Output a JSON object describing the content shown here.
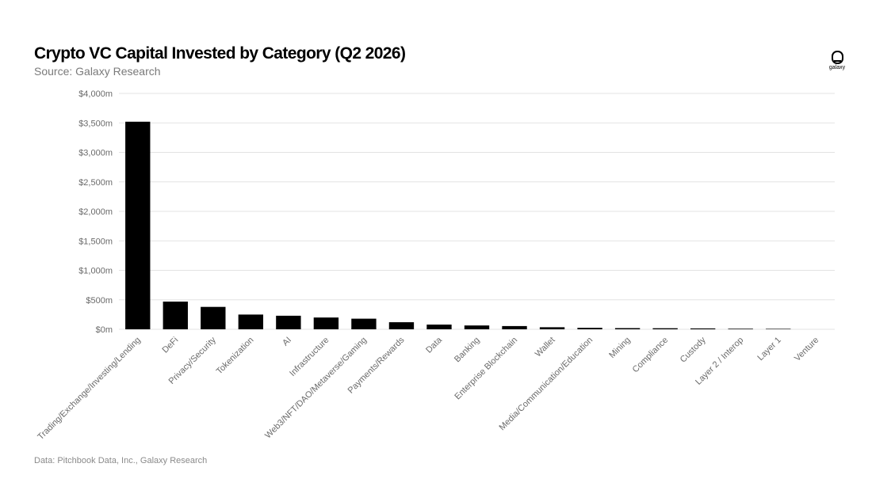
{
  "header": {
    "title": "Crypto VC Capital Invested by Category (Q2 2026)",
    "subtitle": "Source: Galaxy Research"
  },
  "logo": {
    "text": "galaxy",
    "icon": "galaxy-logo-icon"
  },
  "footer": {
    "note": "Data: Pitchbook Data, Inc., Galaxy Research"
  },
  "colors": {
    "bar": "#000000",
    "grid": "#e3e3e3",
    "tick_text": "#6a6a6a"
  },
  "chart_data": {
    "type": "bar",
    "title": "Crypto VC Capital Invested by Category (Q2 2026)",
    "xlabel": "",
    "ylabel": "",
    "ylim": [
      0,
      4000
    ],
    "yticks": [
      0,
      500,
      1000,
      1500,
      2000,
      2500,
      3000,
      3500,
      4000
    ],
    "ytick_labels": [
      "$0m",
      "$500m",
      "$1,000m",
      "$1,500m",
      "$2,000m",
      "$2,500m",
      "$3,000m",
      "$3,500m",
      "$4,000m"
    ],
    "grid": true,
    "legend": "none",
    "categories": [
      "Trading/Exchange/Investing/Lending",
      "DeFi",
      "Privacy/Security",
      "Tokenization",
      "AI",
      "Infrastructure",
      "Web3/NFT/DAO/Metaverse/Gaming",
      "Payments/Rewards",
      "Data",
      "Banking",
      "Enterprise Blockchain",
      "Wallet",
      "Media/Communication/Education",
      "Mining",
      "Compliance",
      "Custody",
      "Layer 2 / Interop",
      "Layer 1",
      "Venture"
    ],
    "values": [
      3520,
      470,
      380,
      250,
      230,
      200,
      180,
      120,
      80,
      65,
      55,
      35,
      25,
      20,
      18,
      15,
      10,
      8,
      0
    ]
  }
}
